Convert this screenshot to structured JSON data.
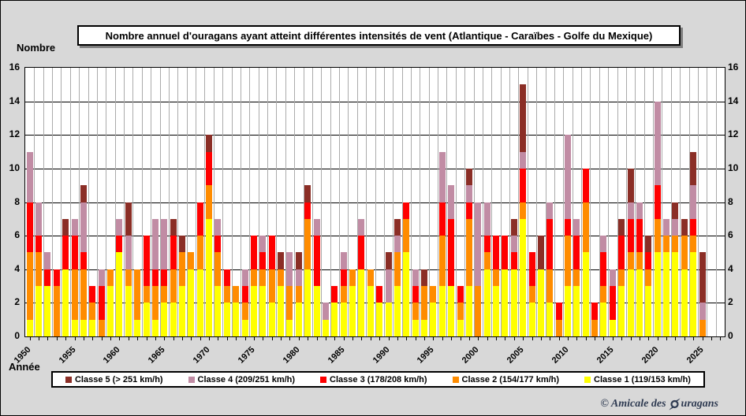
{
  "title": "Nombre annuel d'ouragans ayant atteint différentes intensités de vent (Atlantique - Caraïbes - Golfe du Mexique)",
  "y_axis": {
    "label": "Nombre",
    "ticks": [
      0,
      2,
      4,
      6,
      8,
      10,
      12,
      14,
      16
    ],
    "min": 0,
    "max": 16
  },
  "x_axis": {
    "label": "Année",
    "labeled_ticks": [
      "1950",
      "1955",
      "1960",
      "1965",
      "1970",
      "1975",
      "1980",
      "1985",
      "1990",
      "1995",
      "2000",
      "2005",
      "2010",
      "2015",
      "2020",
      "2025"
    ]
  },
  "legend": [
    {
      "label": "Classe 5 (> 251 km/h)",
      "color": "#8B2E26"
    },
    {
      "label": "Classe 4 (209/251 km/h)",
      "color": "#C18CA4"
    },
    {
      "label": "Classe 3 (178/208 km/h)",
      "color": "#FF0000"
    },
    {
      "label": "Classe 2 (154/177 km/h)",
      "color": "#FF8C00"
    },
    {
      "label": "Classe 1 (119/153 km/h)",
      "color": "#FFFF00"
    }
  ],
  "footer": {
    "copyright_text": "© Amicale des Ouragans",
    "copyright_prefix": "© Amicale des",
    "copyright_suffix": "uragans"
  },
  "chart_data": {
    "type": "bar",
    "stacked": true,
    "title": "Nombre annuel d'ouragans ayant atteint différentes intensités de vent (Atlantique - Caraïbes - Golfe du Mexique)",
    "xlabel": "Année",
    "ylabel": "Nombre",
    "ylim": [
      0,
      16
    ],
    "grid": {
      "horizontal": true,
      "vertical": true
    },
    "legend_position": "bottom",
    "categories": [
      1950,
      1951,
      1952,
      1953,
      1954,
      1955,
      1956,
      1957,
      1958,
      1959,
      1960,
      1961,
      1962,
      1963,
      1964,
      1965,
      1966,
      1967,
      1968,
      1969,
      1970,
      1971,
      1972,
      1973,
      1974,
      1975,
      1976,
      1977,
      1978,
      1979,
      1980,
      1981,
      1982,
      1983,
      1984,
      1985,
      1986,
      1987,
      1988,
      1989,
      1990,
      1991,
      1992,
      1993,
      1994,
      1995,
      1996,
      1997,
      1998,
      1999,
      2000,
      2001,
      2002,
      2003,
      2004,
      2005,
      2006,
      2007,
      2008,
      2009,
      2010,
      2011,
      2012,
      2013,
      2014,
      2015,
      2016,
      2017,
      2018,
      2019,
      2020,
      2021,
      2022,
      2023,
      2024,
      2025
    ],
    "series": [
      {
        "name": "Classe 1 (119/153 km/h)",
        "color": "#FFFF00",
        "values": [
          1,
          3,
          3,
          0,
          4,
          1,
          1,
          1,
          0,
          3,
          5,
          3,
          1,
          2,
          1,
          2,
          2,
          3,
          4,
          4,
          7,
          3,
          2,
          2,
          1,
          3,
          3,
          2,
          3,
          1,
          2,
          4,
          3,
          1,
          2,
          2,
          3,
          4,
          3,
          2,
          2,
          3,
          5,
          1,
          1,
          2,
          3,
          3,
          1,
          3,
          0,
          4,
          3,
          4,
          4,
          7,
          2,
          4,
          2,
          0,
          3,
          3,
          5,
          0,
          2,
          1,
          3,
          4,
          4,
          3,
          5,
          5,
          5,
          4,
          5,
          0
        ]
      },
      {
        "name": "Classe 2 (154/177 km/h)",
        "color": "#FF8C00",
        "values": [
          4,
          2,
          0,
          3,
          0,
          3,
          3,
          1,
          1,
          1,
          0,
          1,
          3,
          1,
          2,
          1,
          2,
          2,
          1,
          2,
          2,
          2,
          1,
          1,
          1,
          1,
          1,
          2,
          1,
          2,
          1,
          3,
          0,
          0,
          0,
          1,
          1,
          0,
          1,
          0,
          0,
          2,
          2,
          1,
          2,
          1,
          3,
          0,
          1,
          4,
          3,
          1,
          1,
          0,
          0,
          1,
          1,
          0,
          2,
          1,
          3,
          1,
          3,
          1,
          1,
          0,
          1,
          1,
          1,
          1,
          2,
          1,
          1,
          2,
          1,
          1
        ]
      },
      {
        "name": "Classe 3 (178/208 km/h)",
        "color": "#FF0000",
        "values": [
          3,
          1,
          1,
          1,
          2,
          2,
          1,
          1,
          2,
          0,
          1,
          0,
          0,
          3,
          1,
          1,
          2,
          0,
          0,
          2,
          2,
          1,
          1,
          0,
          1,
          2,
          1,
          2,
          0,
          0,
          0,
          1,
          3,
          0,
          1,
          1,
          0,
          2,
          0,
          1,
          0,
          0,
          1,
          1,
          0,
          0,
          2,
          4,
          1,
          1,
          0,
          1,
          2,
          2,
          1,
          2,
          2,
          0,
          3,
          1,
          1,
          2,
          2,
          1,
          2,
          2,
          2,
          2,
          2,
          1,
          2,
          0,
          0,
          0,
          1,
          0
        ]
      },
      {
        "name": "Classe 4 (209/251 km/h)",
        "color": "#C18CA4",
        "values": [
          3,
          2,
          1,
          0,
          0,
          1,
          3,
          0,
          1,
          0,
          1,
          2,
          0,
          0,
          3,
          3,
          0,
          0,
          0,
          0,
          0,
          1,
          0,
          0,
          1,
          0,
          1,
          0,
          0,
          2,
          1,
          0,
          1,
          1,
          0,
          1,
          0,
          1,
          0,
          0,
          2,
          1,
          0,
          1,
          0,
          0,
          3,
          2,
          0,
          1,
          5,
          2,
          0,
          0,
          1,
          1,
          0,
          0,
          1,
          0,
          5,
          1,
          0,
          0,
          1,
          1,
          0,
          1,
          1,
          0,
          5,
          1,
          1,
          0,
          2,
          1
        ]
      },
      {
        "name": "Classe 5 (> 251 km/h)",
        "color": "#8B2E26",
        "values": [
          0,
          0,
          0,
          0,
          1,
          0,
          1,
          0,
          0,
          0,
          0,
          2,
          0,
          0,
          0,
          0,
          1,
          1,
          0,
          0,
          1,
          0,
          0,
          0,
          0,
          0,
          0,
          0,
          1,
          0,
          1,
          1,
          0,
          0,
          0,
          0,
          0,
          0,
          0,
          0,
          1,
          1,
          0,
          0,
          1,
          0,
          0,
          0,
          0,
          1,
          0,
          0,
          0,
          0,
          1,
          4,
          0,
          2,
          0,
          0,
          0,
          0,
          0,
          0,
          0,
          0,
          1,
          2,
          0,
          1,
          0,
          0,
          1,
          1,
          2,
          3
        ]
      }
    ]
  }
}
